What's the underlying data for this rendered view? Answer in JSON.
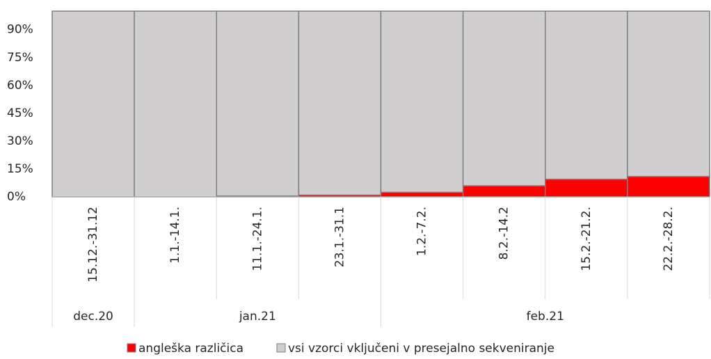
{
  "chart_data": {
    "type": "stacked-bar",
    "categories": [
      "15.12.-31.12",
      "1.1.-14.1.",
      "11.1.-24.1.",
      "23.1.-31.1",
      "1.2.-7.2.",
      "8.2.-14.2",
      "15.2.-21.2.",
      "22.2.-28.2."
    ],
    "groups": [
      {
        "label": "dec.20",
        "size": 1
      },
      {
        "label": "jan.21",
        "size": 3
      },
      {
        "label": "feb.21",
        "size": 4
      }
    ],
    "series": [
      {
        "name": "angleška različica",
        "color": "#ff0000",
        "values": [
          0,
          0,
          0.5,
          1,
          2.5,
          6,
          9.5,
          11
        ]
      },
      {
        "name": "vsi vzorci vključeni v presejalno sekveniranje",
        "color": "#d0cece",
        "values": [
          100,
          100,
          99.5,
          99,
          97.5,
          94,
          90.5,
          89
        ]
      }
    ],
    "ylim": [
      0,
      100
    ],
    "yticks": [
      {
        "value": 0,
        "label": "0%"
      },
      {
        "value": 15,
        "label": "15%"
      },
      {
        "value": 30,
        "label": "30%"
      },
      {
        "value": 45,
        "label": "45%"
      },
      {
        "value": 60,
        "label": "60%"
      },
      {
        "value": 75,
        "label": "75%"
      },
      {
        "value": 90,
        "label": "90%"
      }
    ]
  }
}
